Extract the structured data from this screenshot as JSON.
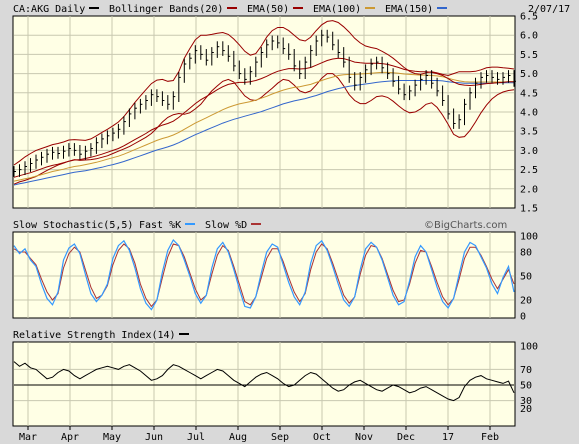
{
  "chart_data": {
    "type": "line",
    "symbol": "CA:AKG",
    "period": "Daily",
    "date": "2/07/17",
    "watermark": "©BigCharts.com",
    "colors": {
      "frame_bg": "#d9d9d9",
      "panel_bg": "#ffffe5",
      "price": "#000000",
      "bollinger": "#990000",
      "ema50": "#990000",
      "ema100": "#cc9933",
      "ema150": "#3366cc",
      "fast_k": "#3399ff",
      "slow_d": "#aa3333",
      "rsi": "#000000"
    },
    "legend": [
      {
        "label": "CA:AKG Daily",
        "color": "#000000"
      },
      {
        "label": "Bollinger Bands(20)",
        "color": "#990000"
      },
      {
        "label": "EMA(50)",
        "color": "#990000"
      },
      {
        "label": "EMA(100)",
        "color": "#cc9933"
      },
      {
        "label": "EMA(150)",
        "color": "#3366cc"
      }
    ],
    "x_months": [
      "Mar",
      "Apr",
      "May",
      "Jun",
      "Jul",
      "Aug",
      "Sep",
      "Oct",
      "Nov",
      "Dec",
      "17",
      "Feb"
    ],
    "price_panel": {
      "ylim": [
        1.5,
        6.5
      ],
      "yticks": [
        "1.5",
        "2.0",
        "2.5",
        "3.0",
        "3.5",
        "4.0",
        "4.5",
        "5.0",
        "5.5",
        "6.0",
        "6.5"
      ],
      "close": [
        2.45,
        2.5,
        2.58,
        2.66,
        2.75,
        2.82,
        2.9,
        2.95,
        2.92,
        2.98,
        3.05,
        3.0,
        2.9,
        2.98,
        3.05,
        3.2,
        3.3,
        3.38,
        3.45,
        3.55,
        3.75,
        3.95,
        4.1,
        4.2,
        4.3,
        4.45,
        4.4,
        4.3,
        4.2,
        4.4,
        4.9,
        5.25,
        5.4,
        5.6,
        5.5,
        5.35,
        5.55,
        5.7,
        5.6,
        5.45,
        5.2,
        5.0,
        4.85,
        5.05,
        5.3,
        5.55,
        5.75,
        5.85,
        5.8,
        5.65,
        5.5,
        5.2,
        5.0,
        5.3,
        5.6,
        5.85,
        6.0,
        5.95,
        5.75,
        5.55,
        5.3,
        4.9,
        4.7,
        4.9,
        5.1,
        5.25,
        5.3,
        5.15,
        5.0,
        4.8,
        4.6,
        4.45,
        4.55,
        4.7,
        4.85,
        4.95,
        4.75,
        4.55,
        4.3,
        3.95,
        3.7,
        3.8,
        4.2,
        4.5,
        4.75,
        4.9,
        4.95,
        4.9,
        4.85,
        4.9,
        4.95,
        4.8
      ],
      "bb_upper": [
        2.62,
        2.72,
        2.83,
        2.92,
        3.0,
        3.05,
        3.1,
        3.15,
        3.18,
        3.22,
        3.27,
        3.28,
        3.27,
        3.26,
        3.3,
        3.38,
        3.47,
        3.55,
        3.64,
        3.74,
        3.88,
        4.06,
        4.25,
        4.42,
        4.58,
        4.74,
        4.83,
        4.85,
        4.8,
        4.82,
        5.05,
        5.4,
        5.65,
        5.88,
        6.0,
        6.0,
        6.02,
        6.05,
        6.07,
        6.02,
        5.9,
        5.75,
        5.58,
        5.48,
        5.52,
        5.72,
        5.95,
        6.12,
        6.2,
        6.2,
        6.12,
        6.0,
        5.88,
        5.85,
        5.95,
        6.12,
        6.27,
        6.36,
        6.38,
        6.33,
        6.22,
        6.08,
        5.92,
        5.8,
        5.72,
        5.68,
        5.65,
        5.58,
        5.5,
        5.4,
        5.28,
        5.16,
        5.06,
        5.0,
        4.98,
        5.02,
        5.05,
        5.02,
        4.98,
        4.95,
        5.0,
        5.05,
        5.05,
        5.05,
        5.06,
        5.1,
        5.15,
        5.17,
        5.17,
        5.15,
        5.14,
        5.12
      ],
      "bb_lower": [
        2.12,
        2.18,
        2.22,
        2.27,
        2.32,
        2.4,
        2.48,
        2.55,
        2.62,
        2.67,
        2.72,
        2.76,
        2.74,
        2.75,
        2.76,
        2.78,
        2.82,
        2.86,
        2.92,
        2.98,
        3.04,
        3.1,
        3.18,
        3.26,
        3.34,
        3.44,
        3.58,
        3.74,
        3.86,
        3.93,
        3.96,
        3.94,
        3.98,
        4.08,
        4.2,
        4.38,
        4.55,
        4.68,
        4.8,
        4.85,
        4.78,
        4.6,
        4.42,
        4.32,
        4.3,
        4.38,
        4.5,
        4.62,
        4.75,
        4.85,
        4.82,
        4.7,
        4.55,
        4.5,
        4.55,
        4.7,
        4.88,
        5.0,
        5.0,
        4.88,
        4.68,
        4.45,
        4.3,
        4.22,
        4.22,
        4.3,
        4.4,
        4.42,
        4.38,
        4.28,
        4.16,
        4.05,
        3.98,
        4.0,
        4.08,
        4.2,
        4.24,
        4.12,
        3.92,
        3.68,
        3.42,
        3.34,
        3.36,
        3.52,
        3.74,
        3.98,
        4.18,
        4.34,
        4.45,
        4.52,
        4.56,
        4.58
      ],
      "ema50": [
        2.3,
        2.34,
        2.38,
        2.42,
        2.47,
        2.52,
        2.57,
        2.61,
        2.64,
        2.68,
        2.72,
        2.75,
        2.76,
        2.79,
        2.82,
        2.86,
        2.9,
        2.95,
        3.0,
        3.05,
        3.12,
        3.2,
        3.28,
        3.36,
        3.44,
        3.53,
        3.6,
        3.66,
        3.7,
        3.76,
        3.86,
        3.98,
        4.1,
        4.22,
        4.32,
        4.4,
        4.49,
        4.58,
        4.66,
        4.72,
        4.75,
        4.77,
        4.77,
        4.79,
        4.82,
        4.87,
        4.93,
        5.0,
        5.06,
        5.1,
        5.13,
        5.13,
        5.12,
        5.13,
        5.16,
        5.22,
        5.28,
        5.34,
        5.38,
        5.4,
        5.39,
        5.35,
        5.3,
        5.28,
        5.27,
        5.27,
        5.27,
        5.26,
        5.24,
        5.2,
        5.16,
        5.11,
        5.08,
        5.06,
        5.05,
        5.05,
        5.03,
        5.0,
        4.95,
        4.87,
        4.78,
        4.72,
        4.7,
        4.69,
        4.7,
        4.72,
        4.74,
        4.75,
        4.76,
        4.77,
        4.79,
        4.79
      ],
      "ema100": [
        2.2,
        2.23,
        2.26,
        2.29,
        2.33,
        2.37,
        2.41,
        2.45,
        2.48,
        2.51,
        2.55,
        2.58,
        2.6,
        2.63,
        2.66,
        2.69,
        2.73,
        2.77,
        2.81,
        2.85,
        2.9,
        2.96,
        3.02,
        3.08,
        3.14,
        3.2,
        3.26,
        3.31,
        3.35,
        3.4,
        3.47,
        3.55,
        3.63,
        3.71,
        3.78,
        3.85,
        3.92,
        3.99,
        4.06,
        4.12,
        4.17,
        4.21,
        4.24,
        4.27,
        4.31,
        4.36,
        4.41,
        4.47,
        4.52,
        4.57,
        4.61,
        4.64,
        4.66,
        4.69,
        4.72,
        4.77,
        4.82,
        4.87,
        4.91,
        4.95,
        4.97,
        4.98,
        4.98,
        4.99,
        5.0,
        5.01,
        5.02,
        5.03,
        5.03,
        5.02,
        5.01,
        4.99,
        4.98,
        4.97,
        4.96,
        4.96,
        4.95,
        4.94,
        4.92,
        4.88,
        4.84,
        4.81,
        4.79,
        4.78,
        4.78,
        4.78,
        4.78,
        4.78,
        4.78,
        4.78,
        4.79,
        4.79
      ],
      "ema150": [
        2.1,
        2.13,
        2.16,
        2.19,
        2.22,
        2.25,
        2.28,
        2.31,
        2.34,
        2.37,
        2.4,
        2.43,
        2.45,
        2.47,
        2.5,
        2.53,
        2.56,
        2.6,
        2.63,
        2.67,
        2.71,
        2.76,
        2.81,
        2.86,
        2.91,
        2.96,
        3.01,
        3.05,
        3.09,
        3.14,
        3.2,
        3.27,
        3.34,
        3.41,
        3.47,
        3.53,
        3.59,
        3.65,
        3.71,
        3.76,
        3.81,
        3.85,
        3.89,
        3.93,
        3.97,
        4.01,
        4.06,
        4.11,
        4.16,
        4.21,
        4.25,
        4.29,
        4.32,
        4.35,
        4.39,
        4.43,
        4.48,
        4.53,
        4.57,
        4.61,
        4.64,
        4.67,
        4.69,
        4.71,
        4.73,
        4.75,
        4.77,
        4.79,
        4.8,
        4.81,
        4.82,
        4.82,
        4.82,
        4.82,
        4.82,
        4.82,
        4.82,
        4.82,
        4.81,
        4.79,
        4.77,
        4.76,
        4.75,
        4.75,
        4.75,
        4.75,
        4.75,
        4.75,
        4.76,
        4.76,
        4.76,
        4.76
      ]
    },
    "stochastic_panel": {
      "title": "Slow Stochastic(5,5)",
      "legend": [
        {
          "label": "Fast %K",
          "color": "#3399ff"
        },
        {
          "label": "Slow %D",
          "color": "#aa3333"
        }
      ],
      "ylim": [
        0,
        100
      ],
      "yticks": [
        "0",
        "20",
        "50",
        "80",
        "100"
      ],
      "fast_k": [
        88,
        78,
        84,
        70,
        62,
        40,
        22,
        14,
        30,
        70,
        85,
        90,
        78,
        52,
        28,
        18,
        26,
        40,
        72,
        88,
        94,
        82,
        60,
        34,
        16,
        8,
        20,
        55,
        82,
        95,
        88,
        70,
        50,
        28,
        16,
        26,
        60,
        84,
        92,
        80,
        58,
        34,
        12,
        10,
        24,
        54,
        80,
        90,
        86,
        64,
        42,
        24,
        14,
        30,
        66,
        88,
        94,
        82,
        62,
        40,
        20,
        12,
        24,
        58,
        84,
        92,
        86,
        70,
        48,
        26,
        14,
        18,
        44,
        74,
        88,
        80,
        58,
        36,
        18,
        10,
        22,
        52,
        80,
        92,
        88,
        74,
        60,
        40,
        28,
        48,
        62,
        30
      ],
      "slow_d": [
        84,
        80,
        80,
        72,
        64,
        46,
        30,
        20,
        28,
        60,
        78,
        86,
        80,
        58,
        36,
        22,
        26,
        38,
        64,
        82,
        90,
        84,
        66,
        40,
        22,
        12,
        20,
        48,
        74,
        90,
        88,
        74,
        54,
        34,
        20,
        26,
        52,
        76,
        88,
        82,
        62,
        40,
        18,
        14,
        24,
        48,
        72,
        84,
        84,
        68,
        48,
        30,
        18,
        28,
        58,
        80,
        90,
        84,
        66,
        46,
        26,
        16,
        24,
        52,
        76,
        88,
        86,
        72,
        52,
        32,
        18,
        20,
        40,
        66,
        82,
        80,
        62,
        42,
        24,
        14,
        22,
        46,
        72,
        86,
        86,
        76,
        62,
        46,
        34,
        46,
        58,
        40
      ]
    },
    "rsi_panel": {
      "title": "Relative Strength Index(14)",
      "ylim": [
        0,
        100
      ],
      "yticks": [
        "20",
        "30",
        "50",
        "70",
        "100"
      ],
      "reference": 50,
      "rsi": [
        80,
        74,
        78,
        72,
        70,
        64,
        58,
        60,
        66,
        70,
        68,
        62,
        58,
        62,
        66,
        70,
        72,
        74,
        72,
        70,
        74,
        76,
        72,
        68,
        62,
        56,
        58,
        62,
        70,
        76,
        74,
        70,
        66,
        62,
        58,
        62,
        66,
        70,
        68,
        62,
        56,
        52,
        48,
        54,
        60,
        64,
        66,
        62,
        58,
        52,
        48,
        50,
        56,
        62,
        66,
        64,
        58,
        52,
        46,
        42,
        44,
        50,
        54,
        56,
        52,
        48,
        44,
        42,
        46,
        50,
        48,
        44,
        40,
        42,
        46,
        48,
        44,
        40,
        36,
        32,
        30,
        34,
        48,
        56,
        60,
        62,
        58,
        56,
        54,
        52,
        55,
        40
      ]
    }
  }
}
